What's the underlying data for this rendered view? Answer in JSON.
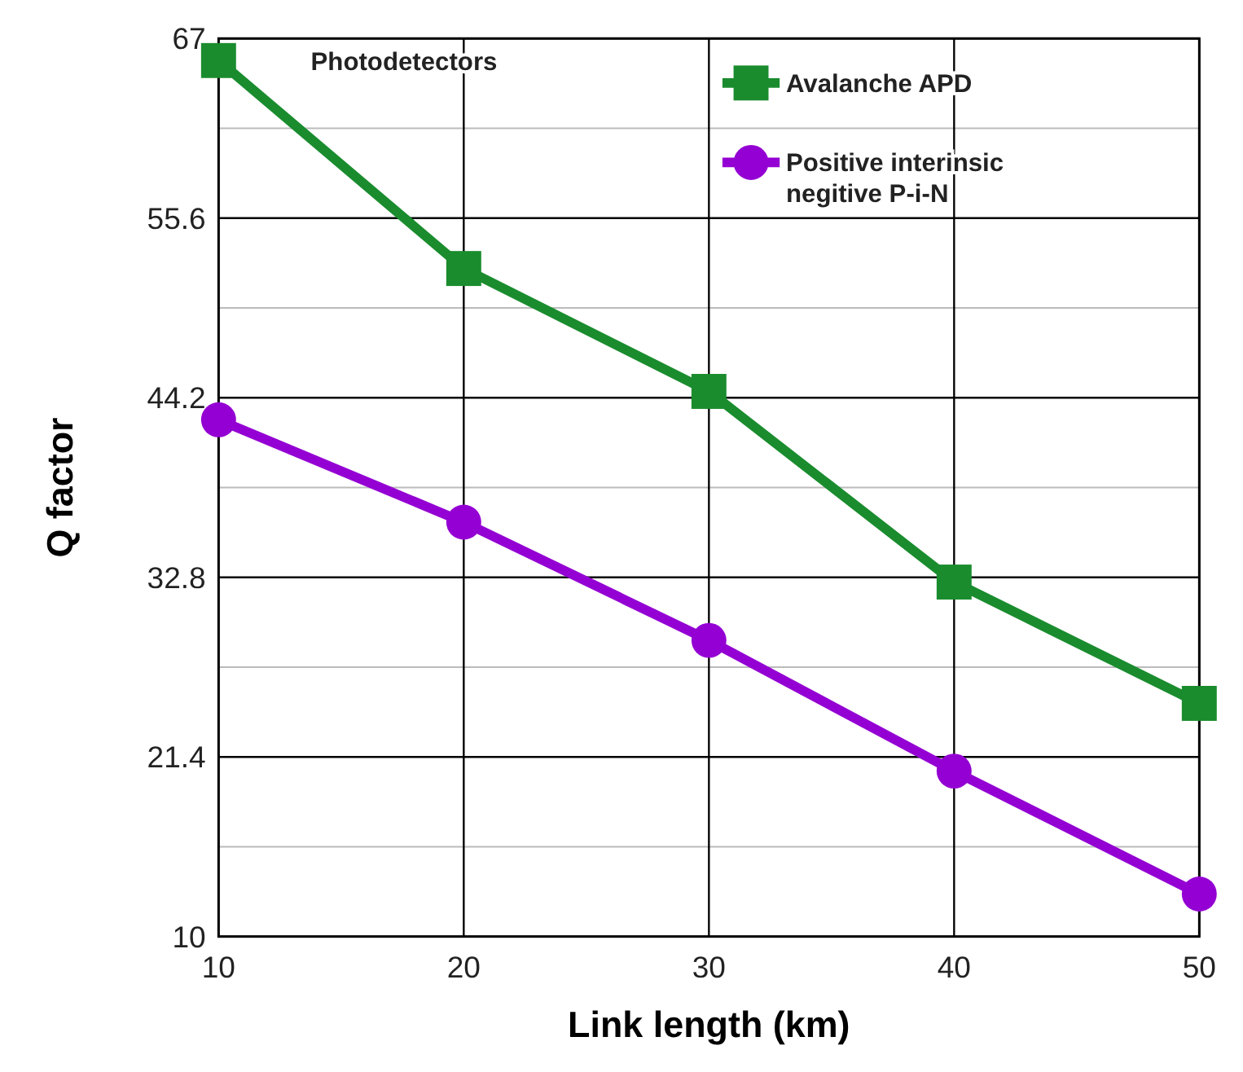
{
  "chart_data": {
    "type": "line",
    "xlabel": "Link length (km)",
    "ylabel": "Q factor",
    "legend_title": "Photodetectors",
    "x": [
      10,
      20,
      30,
      40,
      50
    ],
    "series": [
      {
        "name": "Avalanche APD",
        "color": "#1a8c2e",
        "values": [
          65.6,
          52.4,
          44.6,
          32.5,
          24.8
        ],
        "marker": "square"
      },
      {
        "name": "Positive interinsic negitive P-i-N",
        "color": "#9400d3",
        "values": [
          42.8,
          36.3,
          28.8,
          20.5,
          12.7
        ],
        "marker": "circle"
      }
    ],
    "xlim": [
      10,
      50
    ],
    "xticks": [
      10,
      20,
      30,
      40,
      50
    ],
    "ylim": [
      10,
      67
    ],
    "yticks": [
      10,
      {
        "value": 15.7,
        "label": null
      },
      21.4,
      {
        "value": 27.1,
        "label": null
      },
      32.8,
      {
        "value": 38.5,
        "label": null
      },
      44.2,
      {
        "value": 49.9,
        "label": null
      },
      55.6,
      {
        "value": 61.3,
        "label": null
      },
      67
    ],
    "grid": true,
    "legend": "top right",
    "line_style": "solid"
  }
}
